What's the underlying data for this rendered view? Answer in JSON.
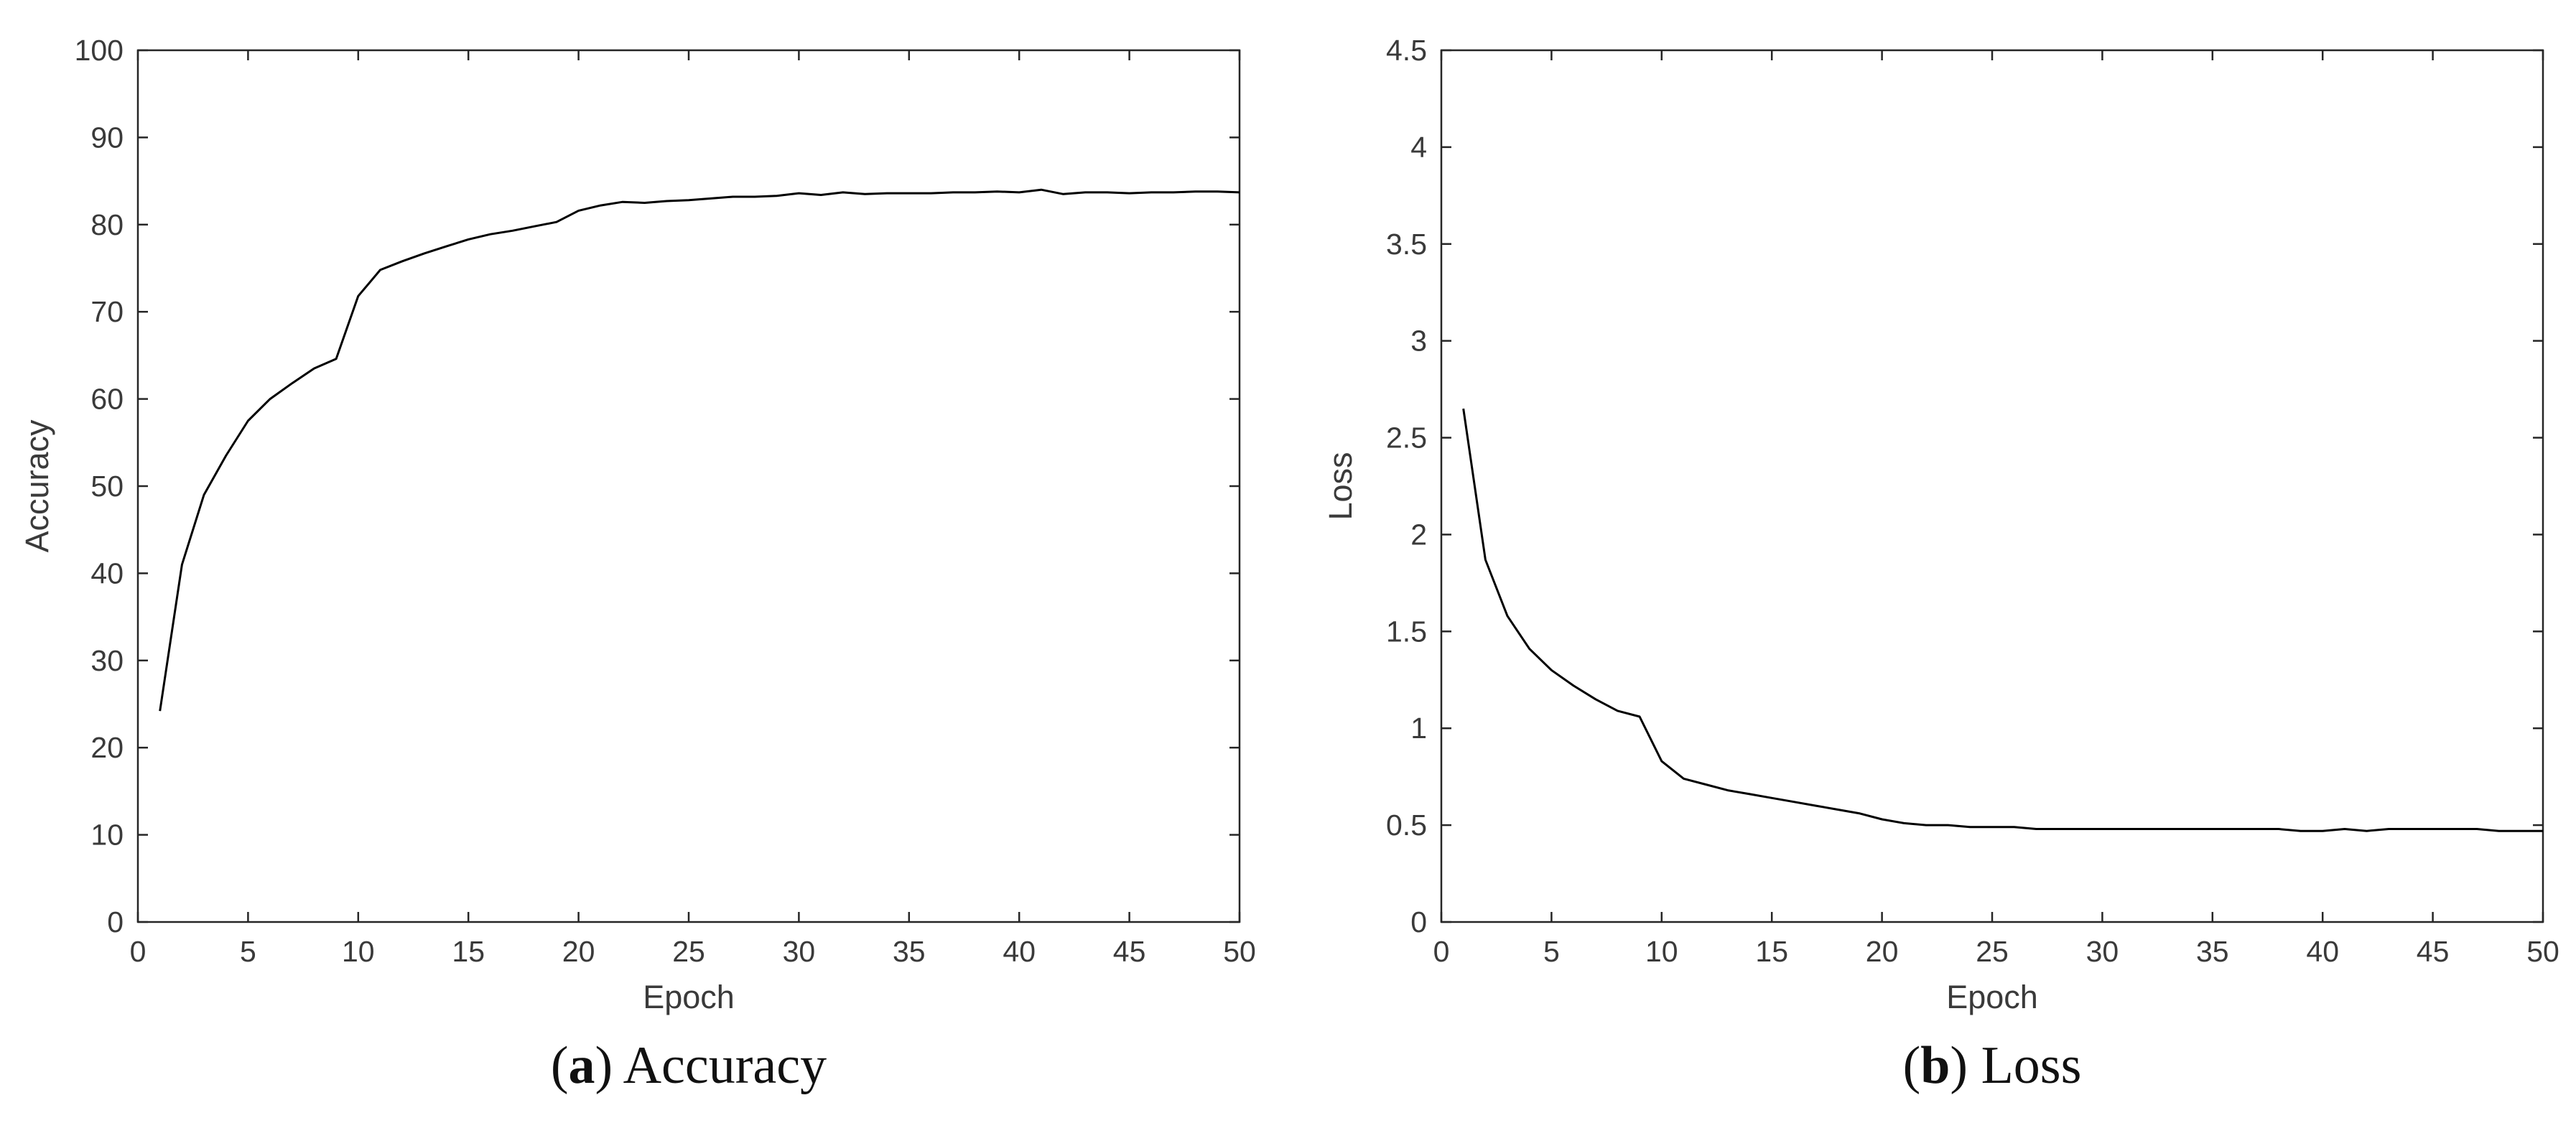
{
  "chart_data": [
    {
      "id": "accuracy",
      "type": "line",
      "caption_letter": "a",
      "caption_text": " Accuracy",
      "xlabel": "Epoch",
      "ylabel": "Accuracy",
      "xlim": [
        0,
        50
      ],
      "ylim": [
        0,
        100
      ],
      "xticks": [
        0,
        5,
        10,
        15,
        20,
        25,
        30,
        35,
        40,
        45,
        50
      ],
      "yticks": [
        0,
        10,
        20,
        30,
        40,
        50,
        60,
        70,
        80,
        90,
        100
      ],
      "ytick_labels": [
        "0",
        "10",
        "20",
        "30",
        "40",
        "50",
        "60",
        "70",
        "80",
        "90",
        "100"
      ],
      "grid": false,
      "series": [
        {
          "x": [
            1,
            2,
            3,
            4,
            5,
            6,
            7,
            8,
            9,
            10,
            11,
            12,
            13,
            14,
            15,
            16,
            17,
            18,
            19,
            20,
            21,
            22,
            23,
            24,
            25,
            26,
            27,
            28,
            29,
            30,
            31,
            32,
            33,
            34,
            35,
            36,
            37,
            38,
            39,
            40,
            41,
            42,
            43,
            44,
            45,
            46,
            47,
            48,
            49,
            50
          ],
          "values": [
            24.2,
            41.0,
            49.0,
            53.5,
            57.5,
            60.0,
            61.8,
            63.5,
            64.6,
            71.8,
            74.8,
            75.8,
            76.7,
            77.5,
            78.3,
            78.9,
            79.3,
            79.8,
            80.3,
            81.6,
            82.2,
            82.6,
            82.5,
            82.7,
            82.8,
            83.0,
            83.2,
            83.2,
            83.3,
            83.6,
            83.4,
            83.7,
            83.5,
            83.6,
            83.6,
            83.6,
            83.7,
            83.7,
            83.8,
            83.7,
            84.0,
            83.5,
            83.7,
            83.7,
            83.6,
            83.7,
            83.7,
            83.8,
            83.8,
            83.7
          ],
          "color": "#000000"
        }
      ]
    },
    {
      "id": "loss",
      "type": "line",
      "caption_letter": "b",
      "caption_text": " Loss",
      "xlabel": "Epoch",
      "ylabel": "Loss",
      "xlim": [
        0,
        50
      ],
      "ylim": [
        0,
        4.5
      ],
      "xticks": [
        0,
        5,
        10,
        15,
        20,
        25,
        30,
        35,
        40,
        45,
        50
      ],
      "yticks": [
        0,
        0.5,
        1,
        1.5,
        2,
        2.5,
        3,
        3.5,
        4,
        4.5
      ],
      "ytick_labels": [
        "0",
        "0.5",
        "1",
        "1.5",
        "2",
        "2.5",
        "3",
        "3.5",
        "4",
        "4.5"
      ],
      "grid": false,
      "series": [
        {
          "x": [
            1,
            2,
            3,
            4,
            5,
            6,
            7,
            8,
            9,
            10,
            11,
            12,
            13,
            14,
            15,
            16,
            17,
            18,
            19,
            20,
            21,
            22,
            23,
            24,
            25,
            26,
            27,
            28,
            29,
            30,
            31,
            32,
            33,
            34,
            35,
            36,
            37,
            38,
            39,
            40,
            41,
            42,
            43,
            44,
            45,
            46,
            47,
            48,
            49,
            50
          ],
          "values": [
            2.65,
            1.87,
            1.58,
            1.41,
            1.3,
            1.22,
            1.15,
            1.09,
            1.06,
            0.83,
            0.74,
            0.71,
            0.68,
            0.66,
            0.64,
            0.62,
            0.6,
            0.58,
            0.56,
            0.53,
            0.51,
            0.5,
            0.5,
            0.49,
            0.49,
            0.49,
            0.48,
            0.48,
            0.48,
            0.48,
            0.48,
            0.48,
            0.48,
            0.48,
            0.48,
            0.48,
            0.48,
            0.48,
            0.47,
            0.47,
            0.48,
            0.47,
            0.48,
            0.48,
            0.48,
            0.48,
            0.48,
            0.47,
            0.47,
            0.47
          ],
          "color": "#000000"
        }
      ]
    }
  ]
}
